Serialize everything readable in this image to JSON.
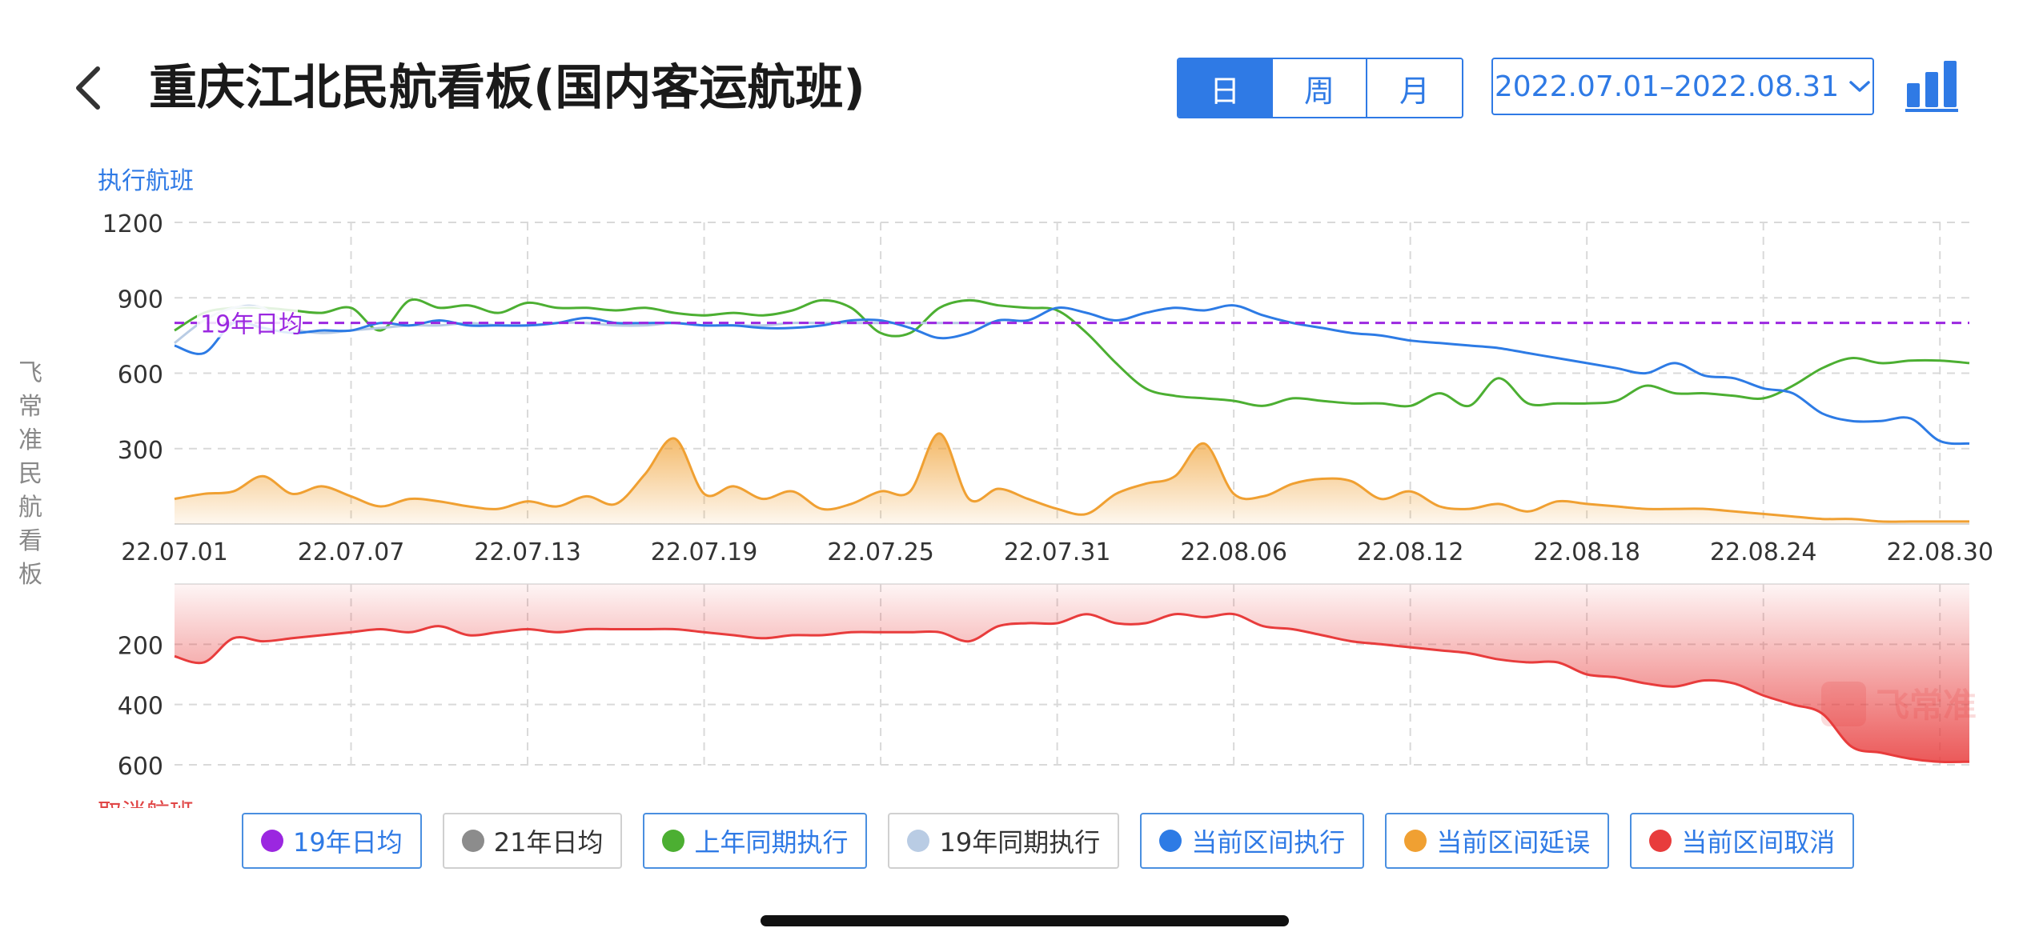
{
  "header": {
    "title": "重庆江北民航看板(国内客运航班)",
    "tabs": [
      {
        "label": "日",
        "active": true
      },
      {
        "label": "周",
        "active": false
      },
      {
        "label": "月",
        "active": false
      }
    ],
    "date_range": "2022.07.01–2022.08.31",
    "back_icon": "chevron-left-icon",
    "chart_icon": "bar-chart-icon"
  },
  "side_label": [
    "飞",
    "常",
    "准",
    "民",
    "航",
    "看",
    "板"
  ],
  "watermark": "飞常准",
  "legend": [
    {
      "label": "19年日均",
      "color": "#9b27e0",
      "active": true
    },
    {
      "label": "21年日均",
      "color": "#8c8c8c",
      "active": false
    },
    {
      "label": "上年同期执行",
      "color": "#4caf32",
      "active": true
    },
    {
      "label": "19年同期执行",
      "color": "#b9cce4",
      "active": false
    },
    {
      "label": "当前区间执行",
      "color": "#2d7be5",
      "active": true
    },
    {
      "label": "当前区间延误",
      "color": "#f0a032",
      "active": true
    },
    {
      "label": "当前区间取消",
      "color": "#e83c3c",
      "active": true
    }
  ],
  "colors": {
    "accent": "#2f7ae5",
    "cancel_label": "#e04545",
    "avg_line": "#9b27e0"
  },
  "chart_data": [
    {
      "type": "line",
      "ylabel": "执行航班",
      "ylim": [
        0,
        1200
      ],
      "yticks": [
        "300",
        "600",
        "900",
        "1200"
      ],
      "x_tick_labels": [
        "22.07.01",
        "22.07.07",
        "22.07.13",
        "22.07.19",
        "22.07.25",
        "22.07.31",
        "22.08.06",
        "22.08.12",
        "22.08.18",
        "22.08.24",
        "22.08.30"
      ],
      "x_start": "22.07.01",
      "x_end": "22.08.31",
      "grid": true,
      "reference_line": {
        "name": "19年日均",
        "value": 800
      },
      "series": [
        {
          "name": "上年同期执行",
          "values": [
            770,
            840,
            860,
            860,
            850,
            840,
            860,
            770,
            890,
            860,
            870,
            840,
            880,
            860,
            860,
            850,
            860,
            840,
            830,
            840,
            830,
            850,
            890,
            860,
            760,
            760,
            860,
            890,
            870,
            860,
            850,
            760,
            640,
            540,
            510,
            500,
            490,
            470,
            500,
            490,
            480,
            480,
            470,
            520,
            470,
            580,
            480,
            480,
            480,
            490,
            550,
            520,
            520,
            510,
            500,
            550,
            620,
            660,
            640,
            650,
            650,
            640
          ]
        },
        {
          "name": "19年同期执行",
          "values": [
            720,
            810,
            860,
            860,
            780,
            760,
            770,
            780,
            790,
            790,
            800,
            790,
            790,
            800,
            800,
            790,
            790,
            800,
            790,
            790,
            790,
            800,
            800,
            800,
            800,
            800,
            800,
            800,
            800
          ]
        },
        {
          "name": "当前区间执行",
          "values": [
            710,
            680,
            800,
            780,
            760,
            770,
            770,
            800,
            790,
            810,
            790,
            790,
            790,
            800,
            820,
            800,
            800,
            800,
            790,
            790,
            780,
            780,
            790,
            810,
            810,
            780,
            740,
            760,
            810,
            810,
            860,
            840,
            810,
            840,
            860,
            850,
            870,
            830,
            800,
            780,
            760,
            750,
            730,
            720,
            710,
            700,
            680,
            660,
            640,
            620,
            600,
            640,
            590,
            580,
            540,
            520,
            440,
            410,
            410,
            420,
            330,
            320
          ]
        },
        {
          "name": "当前区间延误",
          "values": [
            100,
            120,
            130,
            190,
            120,
            150,
            110,
            70,
            100,
            90,
            70,
            60,
            90,
            70,
            110,
            80,
            200,
            340,
            120,
            150,
            100,
            130,
            60,
            80,
            130,
            130,
            360,
            100,
            140,
            100,
            60,
            40,
            120,
            160,
            190,
            320,
            120,
            110,
            160,
            180,
            170,
            100,
            130,
            70,
            60,
            80,
            50,
            90,
            80,
            70,
            60,
            60,
            60,
            50,
            40,
            30,
            20,
            20,
            10,
            10,
            10,
            10
          ]
        }
      ]
    },
    {
      "type": "area",
      "ylabel": "取消航班",
      "ylim": [
        0,
        600
      ],
      "yticks": [
        "200",
        "400",
        "600"
      ],
      "inverted": true,
      "series": [
        {
          "name": "当前区间取消",
          "values": [
            240,
            260,
            180,
            190,
            180,
            170,
            160,
            150,
            160,
            140,
            170,
            160,
            150,
            160,
            150,
            150,
            150,
            150,
            160,
            170,
            180,
            170,
            170,
            160,
            160,
            160,
            160,
            190,
            140,
            130,
            130,
            100,
            130,
            130,
            100,
            110,
            100,
            140,
            150,
            170,
            190,
            200,
            210,
            220,
            230,
            250,
            260,
            260,
            300,
            310,
            330,
            340,
            320,
            330,
            370,
            400,
            430,
            540,
            560,
            580,
            590,
            590
          ]
        }
      ]
    }
  ]
}
